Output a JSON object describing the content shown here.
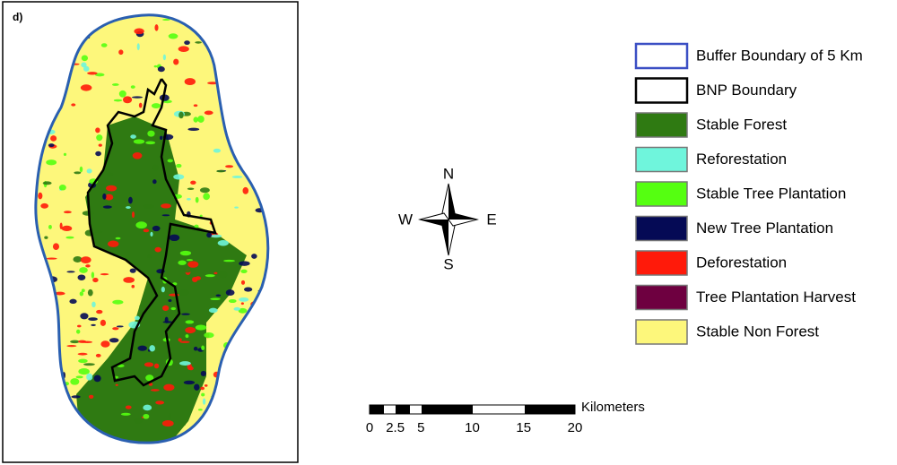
{
  "panel_label": "d)",
  "compass": {
    "north": "N",
    "south": "S",
    "east": "E",
    "west": "W"
  },
  "scale_bar": {
    "unit": "Kilometers",
    "ticks": [
      0,
      2.5,
      5,
      10,
      15,
      20
    ]
  },
  "legend": [
    {
      "label": "Buffer Boundary of 5 Km",
      "fill": "#ffffff",
      "stroke": "#3b4fc4"
    },
    {
      "label": "BNP Boundary",
      "fill": "#ffffff",
      "stroke": "#000000"
    },
    {
      "label": "Stable Forest",
      "fill": "#2f7a12",
      "stroke": "#777777"
    },
    {
      "label": "Reforestation",
      "fill": "#6ff5dc",
      "stroke": "#777777"
    },
    {
      "label": "Stable Tree Plantation",
      "fill": "#55ff11",
      "stroke": "#777777"
    },
    {
      "label": "New Tree Plantation",
      "fill": "#050a55",
      "stroke": "#777777"
    },
    {
      "label": "Deforestation",
      "fill": "#ff1a0a",
      "stroke": "#777777"
    },
    {
      "label": "Tree Plantation Harvest",
      "fill": "#6e0040",
      "stroke": "#777777"
    },
    {
      "label": "Stable Non Forest",
      "fill": "#fdf77b",
      "stroke": "#777777"
    }
  ]
}
